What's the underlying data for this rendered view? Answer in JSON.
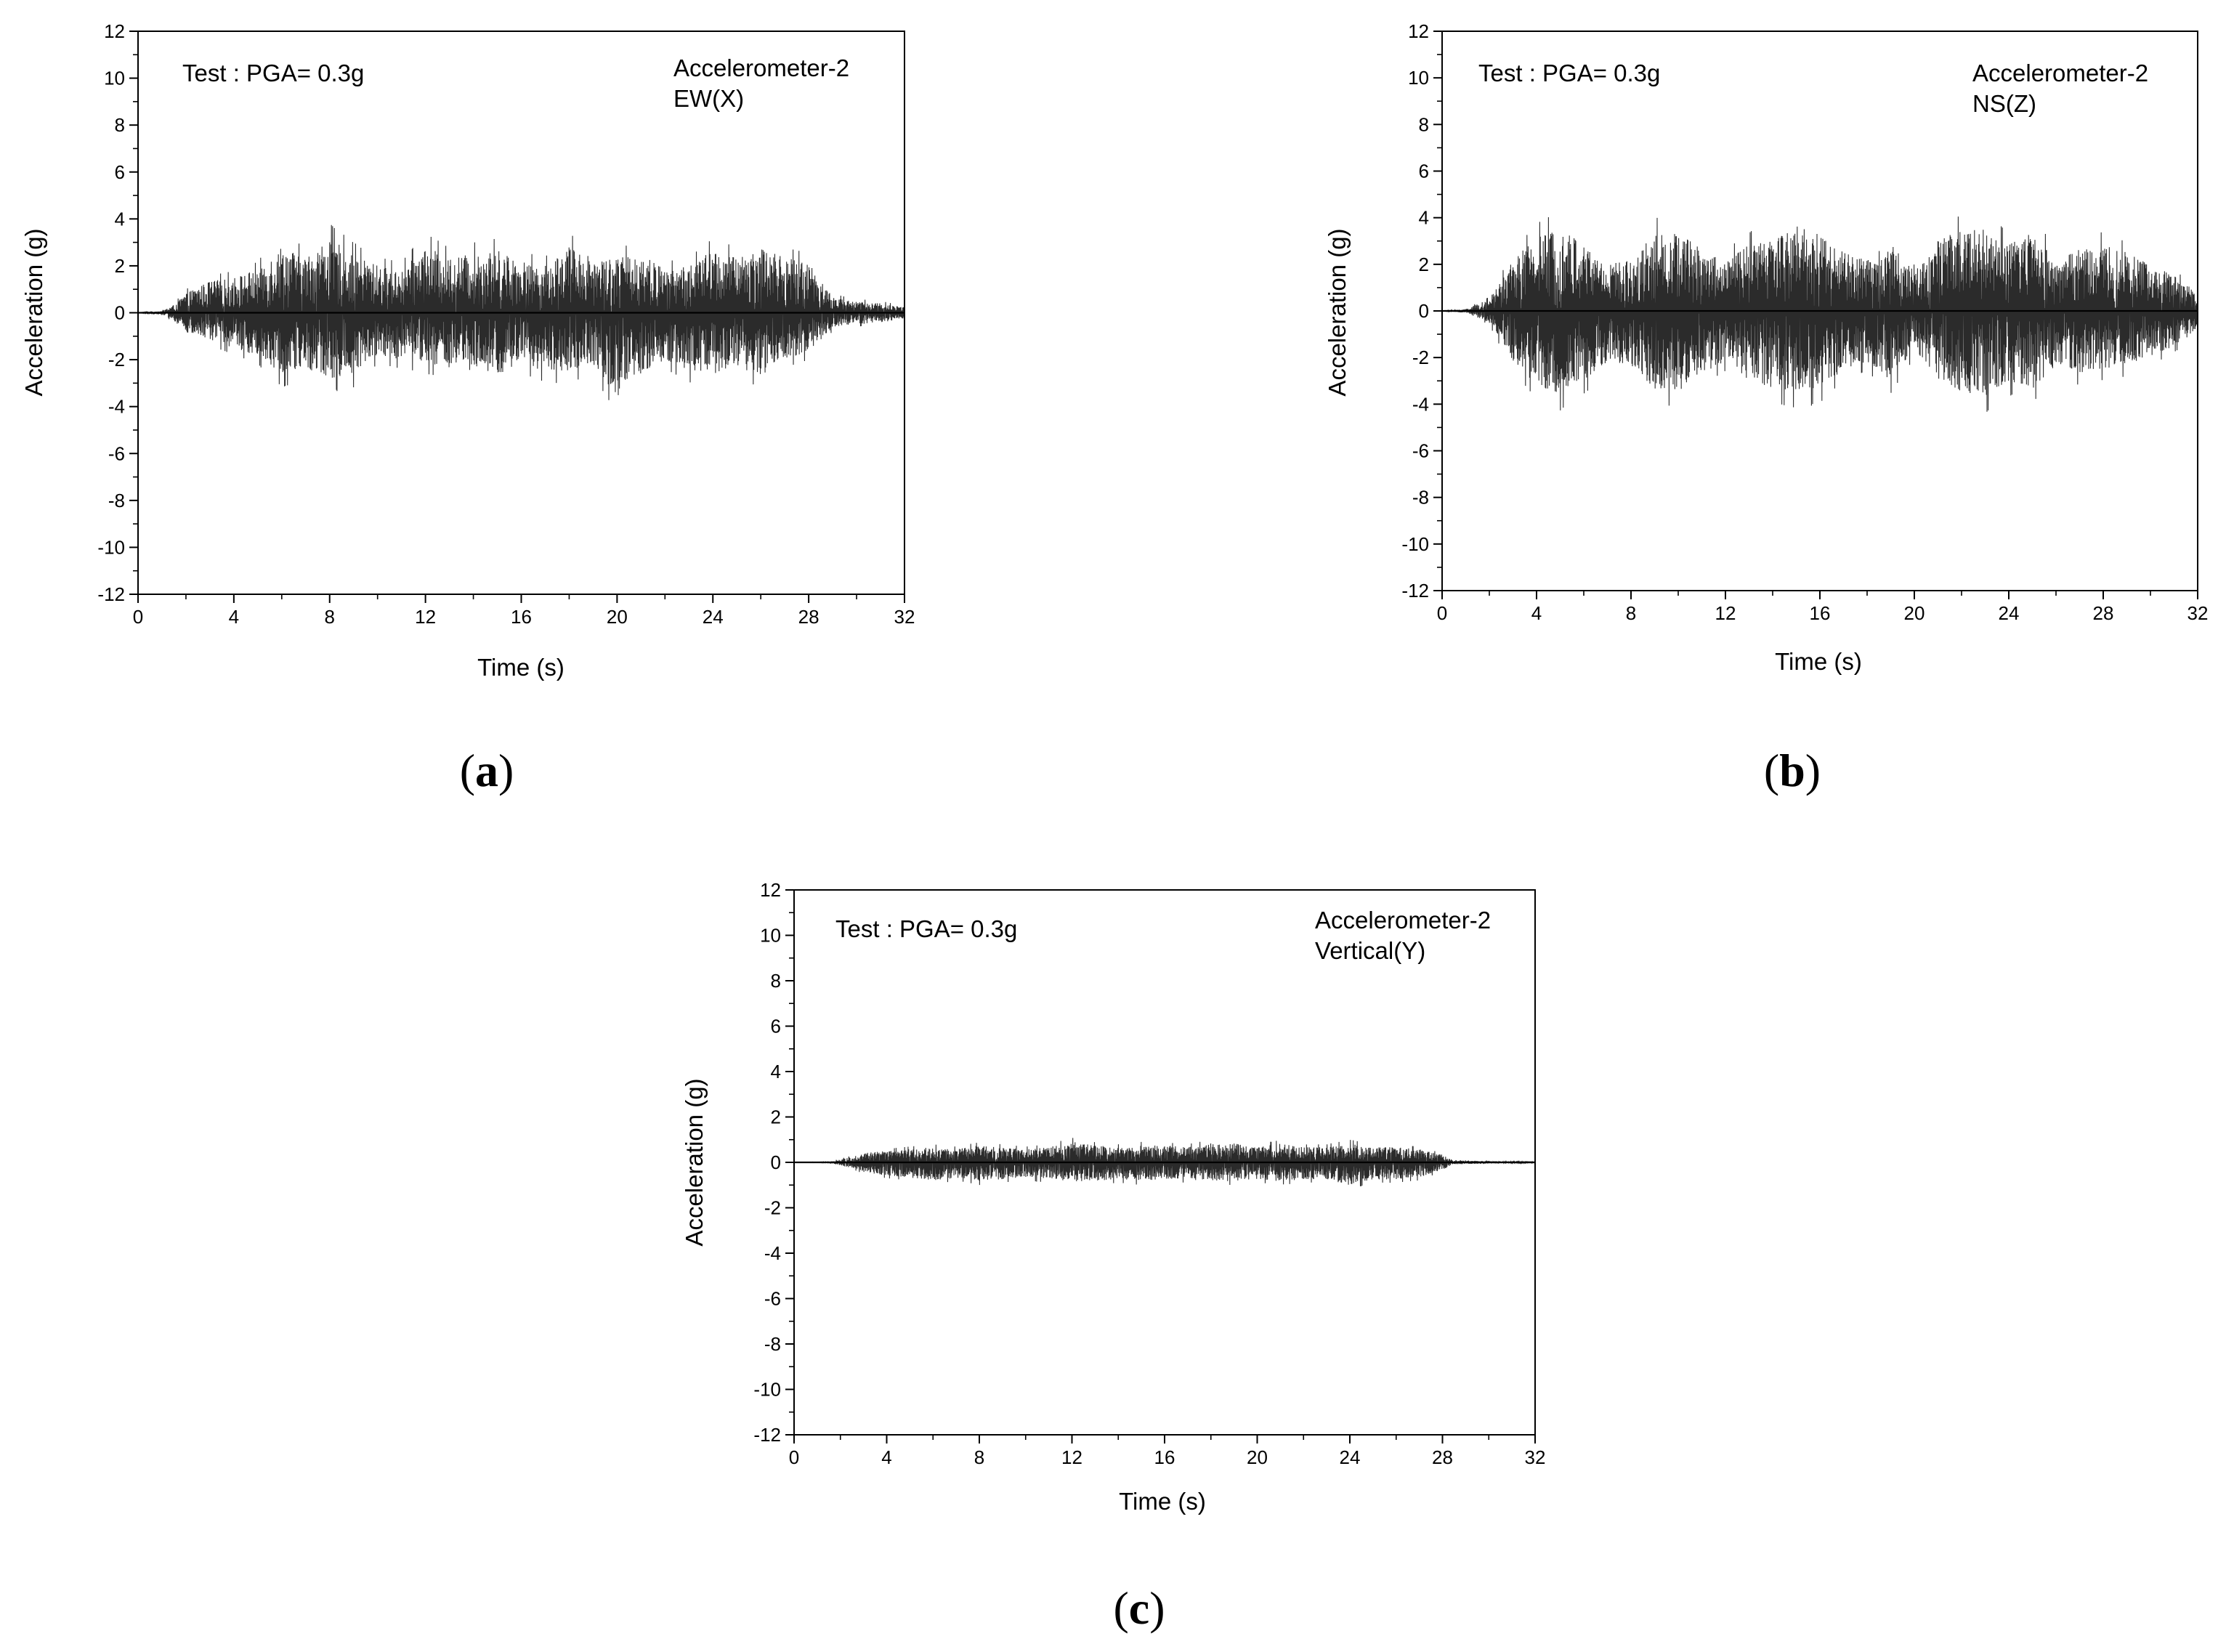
{
  "chart_data": [
    {
      "type": "line",
      "caption_letter": "a",
      "annotation": "Test : PGA= 0.3g",
      "sensor_label": "Accelerometer-2",
      "direction_label": "EW(X)",
      "xlabel": "Time (s)",
      "ylabel": "Acceleration (g)",
      "xlim": [
        0,
        32
      ],
      "ylim": [
        -12,
        12
      ],
      "xticks": [
        0,
        4,
        8,
        12,
        16,
        20,
        24,
        28,
        32
      ],
      "yticks": [
        -12,
        -10,
        -8,
        -6,
        -4,
        -2,
        0,
        2,
        4,
        6,
        8,
        10,
        12
      ],
      "grid": false,
      "series": [
        {
          "envelope": {
            "t": [
              0,
              1,
              1.5,
              2,
              3,
              4,
              5,
              6,
              7,
              8,
              9,
              10,
              11,
              12,
              13,
              14,
              15,
              16,
              17,
              18,
              19,
              20,
              21,
              22,
              23,
              24,
              25,
              26,
              27,
              28,
              29,
              30,
              31,
              32
            ],
            "upper": [
              0,
              0.1,
              0.4,
              1.0,
              1.6,
              1.8,
              2.2,
              3.4,
              2.8,
              3.8,
              3.0,
              2.4,
              2.2,
              3.4,
              2.8,
              3.0,
              3.2,
              2.6,
              2.4,
              3.4,
              2.8,
              2.8,
              3.0,
              2.2,
              2.4,
              3.2,
              2.8,
              3.4,
              2.8,
              2.6,
              0.8,
              0.6,
              0.5,
              0.3
            ],
            "lower": [
              0,
              -0.1,
              -0.4,
              -1.0,
              -1.4,
              -1.8,
              -2.2,
              -3.2,
              -2.8,
              -3.4,
              -3.2,
              -2.2,
              -2.4,
              -2.6,
              -2.8,
              -3.0,
              -3.2,
              -2.6,
              -3.0,
              -3.0,
              -2.6,
              -4.4,
              -3.2,
              -2.4,
              -3.0,
              -3.2,
              -2.8,
              -3.2,
              -2.4,
              -2.0,
              -0.8,
              -0.6,
              -0.5,
              -0.3
            ]
          }
        }
      ]
    },
    {
      "type": "line",
      "caption_letter": "b",
      "annotation": "Test : PGA= 0.3g",
      "sensor_label": "Accelerometer-2",
      "direction_label": "NS(Z)",
      "xlabel": "Time (s)",
      "ylabel": "Acceleration (g)",
      "xlim": [
        0,
        32
      ],
      "ylim": [
        -12,
        12
      ],
      "xticks": [
        0,
        4,
        8,
        12,
        16,
        20,
        24,
        28,
        32
      ],
      "yticks": [
        -12,
        -10,
        -8,
        -6,
        -4,
        -2,
        0,
        2,
        4,
        6,
        8,
        10,
        12
      ],
      "grid": false,
      "series": [
        {
          "envelope": {
            "t": [
              0,
              1,
              2,
              3,
              4,
              5,
              6,
              7,
              8,
              9,
              10,
              11,
              12,
              13,
              14,
              15,
              16,
              17,
              18,
              19,
              20,
              21,
              22,
              23,
              24,
              25,
              26,
              27,
              28,
              29,
              30,
              31,
              32
            ],
            "upper": [
              0,
              0.1,
              0.6,
              2.6,
              3.8,
              4.3,
              3.4,
              2.4,
              2.6,
              4.0,
              4.0,
              3.2,
              2.6,
              3.4,
              3.8,
              4.4,
              4.0,
              3.0,
              2.6,
              3.6,
              2.0,
              3.6,
              4.2,
              4.2,
              3.4,
              4.2,
              2.6,
              3.2,
              3.4,
              3.0,
              2.4,
              1.8,
              1.0
            ],
            "lower": [
              0,
              -0.1,
              -0.6,
              -2.6,
              -3.8,
              -4.3,
              -3.6,
              -2.6,
              -2.8,
              -4.0,
              -4.2,
              -3.2,
              -2.6,
              -3.6,
              -4.0,
              -4.2,
              -4.0,
              -3.0,
              -2.6,
              -3.6,
              -2.0,
              -3.6,
              -4.2,
              -4.4,
              -3.6,
              -4.0,
              -2.8,
              -3.2,
              -3.0,
              -2.8,
              -2.4,
              -1.8,
              -1.0
            ]
          }
        }
      ]
    },
    {
      "type": "line",
      "caption_letter": "c",
      "annotation": "Test : PGA= 0.3g",
      "sensor_label": "Accelerometer-2",
      "direction_label": "Vertical(Y)",
      "xlabel": "Time (s)",
      "ylabel": "Acceleration (g)",
      "xlim": [
        0,
        32
      ],
      "ylim": [
        -12,
        12
      ],
      "xticks": [
        0,
        4,
        8,
        12,
        16,
        20,
        24,
        28,
        32
      ],
      "yticks": [
        -12,
        -10,
        -8,
        -6,
        -4,
        -2,
        0,
        2,
        4,
        6,
        8,
        10,
        12
      ],
      "grid": false,
      "series": [
        {
          "envelope": {
            "t": [
              0,
              1.5,
              2.5,
              3,
              4,
              5,
              6,
              7,
              8,
              9,
              10,
              11,
              12,
              13,
              14,
              15,
              16,
              17,
              18,
              19,
              20,
              21,
              22,
              23,
              24,
              25,
              26,
              27,
              28,
              28.5,
              32
            ],
            "upper": [
              0,
              0.02,
              0.3,
              0.5,
              0.6,
              0.7,
              0.8,
              0.7,
              0.9,
              0.8,
              0.7,
              0.8,
              1.1,
              0.9,
              0.8,
              0.9,
              0.9,
              0.8,
              1.0,
              1.0,
              0.8,
              1.0,
              0.8,
              0.8,
              1.0,
              0.8,
              0.8,
              0.7,
              0.4,
              0.1,
              0.02
            ],
            "lower": [
              0,
              -0.02,
              -0.3,
              -0.5,
              -0.7,
              -0.8,
              -1.0,
              -0.8,
              -1.0,
              -0.9,
              -0.8,
              -0.9,
              -1.0,
              -1.0,
              -0.9,
              -1.0,
              -0.9,
              -0.9,
              -1.0,
              -1.0,
              -0.9,
              -1.0,
              -0.9,
              -0.9,
              -1.2,
              -0.9,
              -0.9,
              -0.8,
              -0.4,
              -0.1,
              -0.02
            ]
          }
        }
      ]
    }
  ]
}
